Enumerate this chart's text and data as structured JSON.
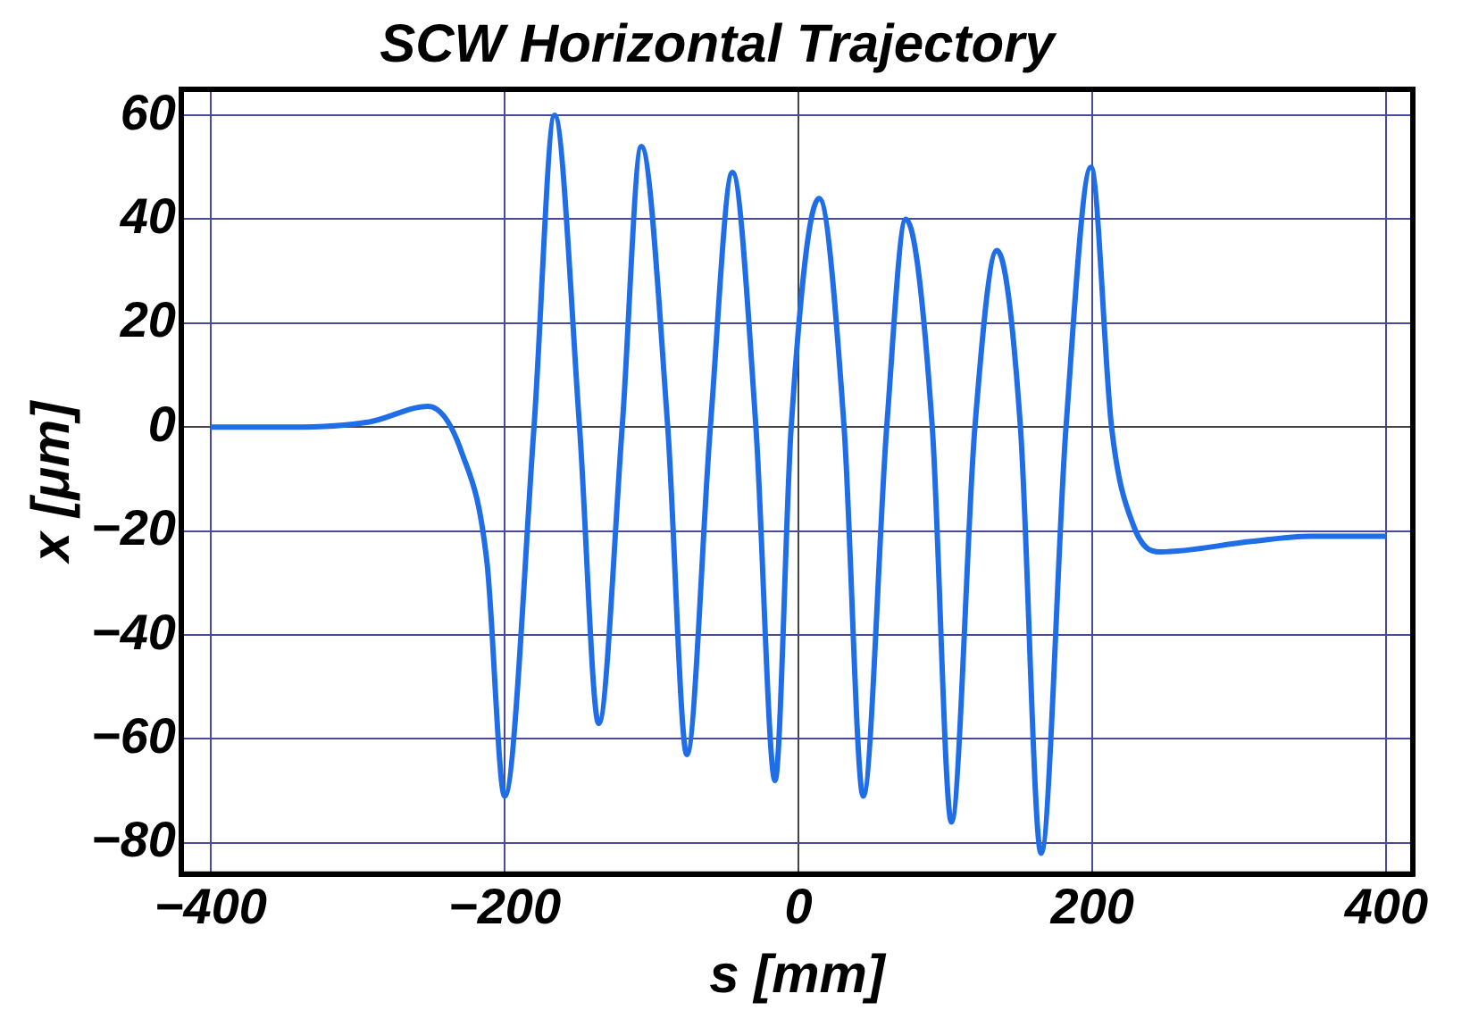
{
  "chart_data": {
    "type": "line",
    "title": "SCW Horizontal Trajectory",
    "xlabel": "s [mm]",
    "ylabel": "x [μm]",
    "series": [
      {
        "color": "#1f6ee8",
        "x": [
          -400,
          -345,
          -292,
          -252,
          -229,
          -212,
          -200,
          -180,
          -166,
          -149,
          -136,
          -120,
          -107,
          -89,
          -76,
          -60,
          -45,
          -29,
          -16,
          -5,
          14,
          31,
          44,
          60,
          73,
          91,
          104,
          120,
          135,
          151,
          165,
          182,
          199,
          213,
          228,
          246,
          308,
          348,
          400
        ],
        "values": [
          0,
          0,
          1,
          4,
          -5,
          -26,
          -71,
          0,
          60,
          0,
          -57,
          0,
          54,
          0,
          -63,
          0,
          49,
          0,
          -68,
          0,
          44,
          0,
          -71,
          0,
          40,
          0,
          -76,
          0,
          34,
          0,
          -82,
          0,
          50,
          0,
          -19,
          -24,
          -22,
          -21,
          -21
        ]
      }
    ],
    "xlim": [
      -420,
      418
    ],
    "xticks": [
      -400,
      -200,
      0,
      200,
      400
    ],
    "ylim": [
      -86,
      65
    ],
    "yticks": [
      -80,
      -60,
      -40,
      -20,
      0,
      20,
      40,
      60
    ],
    "grid": true,
    "legend": false,
    "marker": "none",
    "line_style": "solid"
  }
}
